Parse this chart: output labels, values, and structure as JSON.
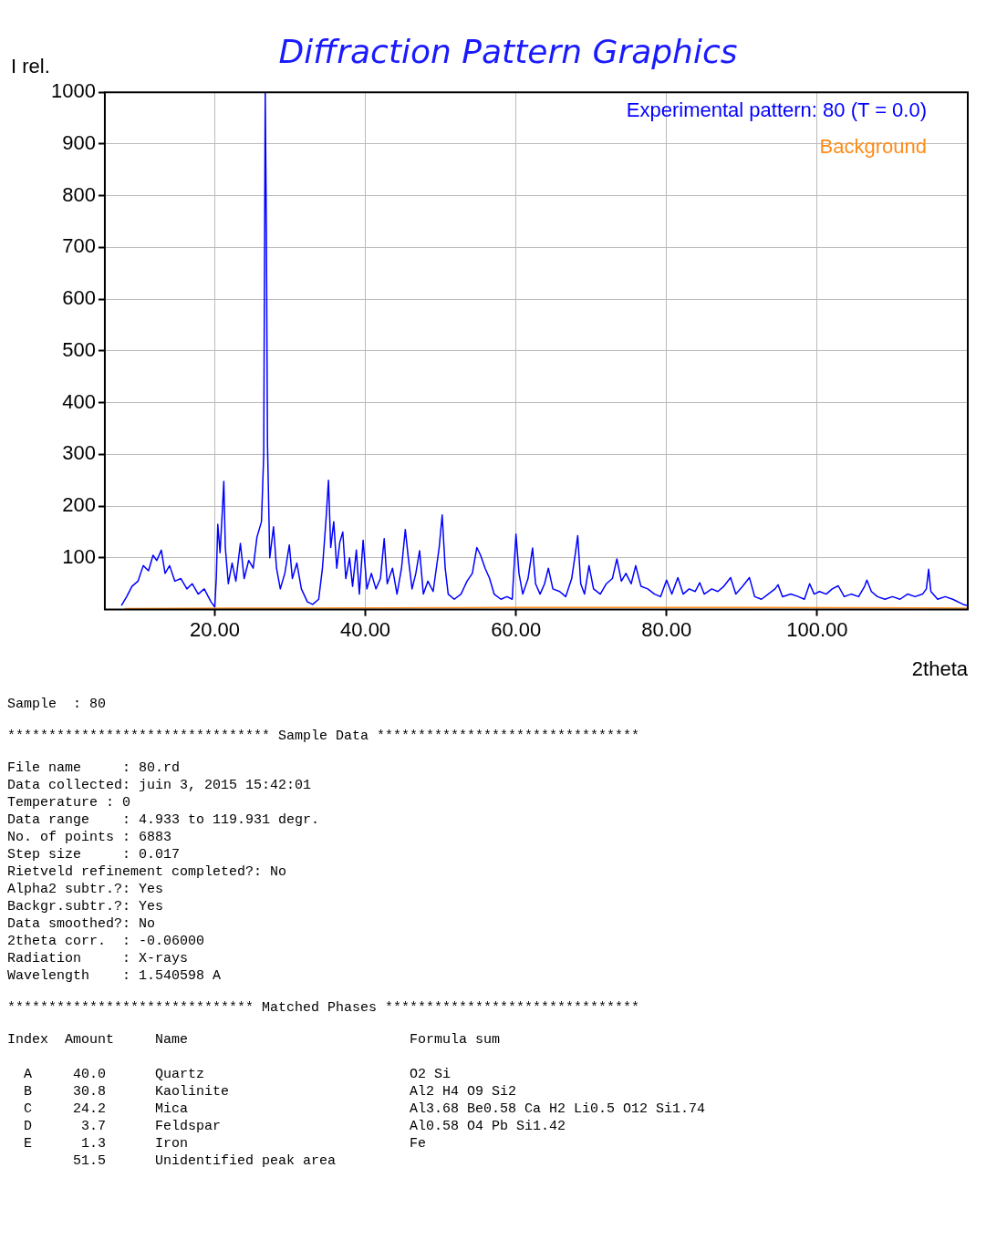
{
  "chart_data": {
    "type": "line",
    "title": "Diffraction Pattern Graphics",
    "xlabel": "2theta",
    "ylabel": "I rel.",
    "xlim": [
      5.4,
      120
    ],
    "ylim": [
      0,
      1000
    ],
    "xticks": [
      {
        "value": 20,
        "label": "20.00"
      },
      {
        "value": 40,
        "label": "40.00"
      },
      {
        "value": 60,
        "label": "60.00"
      },
      {
        "value": 80,
        "label": "80.00"
      },
      {
        "value": 100,
        "label": "100.00"
      }
    ],
    "yticks": [
      100,
      200,
      300,
      400,
      500,
      600,
      700,
      800,
      900,
      1000
    ],
    "grid": true,
    "legend": "top right",
    "marker": "none",
    "series": [
      {
        "name": "Background",
        "color": "#ff8c1a",
        "x": [
          8,
          30,
          60,
          90,
          119.9
        ],
        "values": [
          2,
          3,
          4,
          4,
          3
        ]
      },
      {
        "name": "Experimental pattern: 80 (T = 0.0)",
        "color": "#0000ff",
        "x": [
          7.6,
          8.3,
          9.0,
          9.8,
          10.5,
          11.2,
          11.8,
          12.3,
          12.9,
          13.4,
          14.0,
          14.7,
          15.5,
          16.3,
          17.0,
          17.8,
          18.6,
          19.5,
          20.0,
          20.2,
          20.4,
          20.7,
          21.0,
          21.2,
          21.4,
          21.8,
          22.3,
          22.8,
          23.4,
          23.9,
          24.5,
          25.1,
          25.6,
          26.2,
          26.5,
          26.7,
          26.85,
          27.0,
          27.3,
          27.8,
          28.2,
          28.7,
          29.3,
          29.9,
          30.3,
          30.9,
          31.5,
          32.3,
          33.0,
          33.8,
          34.3,
          34.8,
          35.1,
          35.4,
          35.8,
          36.2,
          36.6,
          37.0,
          37.4,
          37.9,
          38.3,
          38.8,
          39.2,
          39.7,
          40.2,
          40.8,
          41.4,
          42.0,
          42.5,
          42.9,
          43.6,
          44.2,
          44.8,
          45.3,
          45.7,
          46.2,
          46.7,
          47.2,
          47.7,
          48.3,
          49.0,
          49.8,
          50.2,
          50.6,
          51.0,
          51.8,
          52.7,
          53.5,
          54.2,
          54.8,
          55.3,
          55.9,
          56.5,
          57.1,
          58.0,
          58.8,
          59.5,
          60.0,
          60.4,
          60.9,
          61.6,
          62.2,
          62.6,
          63.2,
          63.8,
          64.3,
          64.9,
          65.8,
          66.6,
          67.4,
          67.9,
          68.2,
          68.6,
          69.1,
          69.7,
          70.3,
          71.2,
          72.0,
          72.8,
          73.4,
          74.0,
          74.6,
          75.3,
          75.9,
          76.6,
          77.5,
          78.4,
          79.2,
          80.0,
          80.7,
          81.5,
          82.2,
          83.0,
          83.8,
          84.4,
          85.0,
          86.0,
          86.8,
          87.6,
          88.5,
          89.2,
          90.1,
          91.0,
          91.7,
          92.6,
          93.5,
          94.4,
          94.8,
          95.4,
          96.5,
          97.5,
          98.3,
          99.0,
          99.6,
          100.3,
          101.2,
          102.0,
          102.8,
          103.6,
          104.5,
          105.5,
          106.3,
          106.6,
          107.2,
          108.0,
          109.0,
          110.0,
          111.0,
          112.0,
          113.0,
          114.0,
          114.5,
          114.8,
          115.1,
          116.0,
          117.0,
          118.0,
          119.4,
          119.9
        ],
        "values": [
          8,
          25,
          45,
          55,
          85,
          75,
          105,
          95,
          115,
          70,
          85,
          55,
          60,
          40,
          50,
          30,
          40,
          15,
          5,
          60,
          165,
          110,
          190,
          248,
          120,
          50,
          90,
          55,
          128,
          60,
          95,
          80,
          140,
          170,
          300,
          1000,
          740,
          320,
          100,
          160,
          80,
          40,
          70,
          125,
          60,
          90,
          40,
          15,
          10,
          20,
          80,
          180,
          250,
          120,
          170,
          80,
          130,
          150,
          60,
          100,
          45,
          115,
          30,
          134,
          40,
          70,
          40,
          60,
          137,
          50,
          80,
          30,
          80,
          155,
          100,
          40,
          70,
          114,
          30,
          55,
          35,
          120,
          183,
          80,
          30,
          20,
          30,
          55,
          70,
          120,
          105,
          80,
          60,
          30,
          20,
          25,
          20,
          146,
          70,
          30,
          60,
          119,
          50,
          30,
          50,
          80,
          40,
          35,
          25,
          60,
          110,
          143,
          50,
          30,
          85,
          40,
          30,
          50,
          60,
          98,
          55,
          70,
          50,
          85,
          45,
          40,
          30,
          25,
          57,
          30,
          62,
          30,
          40,
          35,
          52,
          30,
          40,
          35,
          45,
          62,
          30,
          45,
          62,
          25,
          20,
          30,
          40,
          48,
          25,
          30,
          25,
          20,
          50,
          30,
          35,
          30,
          40,
          46,
          25,
          30,
          25,
          45,
          57,
          35,
          25,
          20,
          25,
          20,
          30,
          25,
          30,
          40,
          78,
          35,
          20,
          25,
          20,
          10,
          8
        ]
      }
    ],
    "annotations": [
      "Sample  : 80",
      "******************************** Sample Data ********************************",
      "File name     : 80.rd\nData collected: juin 3, 2015 15:42:01\nTemperature : 0\nData range    : 4.933 to 119.931 degr.\nNo. of points : 6883\nStep size     : 0.017\nRietveld refinement completed?: No\nAlpha2 subtr.?: Yes\nBackgr.subtr.?: Yes\nData smoothed?: No\n2theta corr.  : -0.06000\nRadiation     : X-rays\nWavelength    : 1.540598 A",
      "****************************** Matched Phases *******************************",
      "Index  Amount     Name                           Formula sum\n\n  A     40.0      Quartz                         O2 Si\n  B     30.8      Kaolinite                      Al2 H4 O9 Si2\n  C     24.2      Mica                           Al3.68 Be0.58 Ca H2 Li0.5 O12 Si1.74\n  D      3.7      Feldspar                       Al0.58 O4 Pb Si1.42\n  E      1.3      Iron                           Fe\n        51.5      Unidentified peak area"
    ]
  }
}
